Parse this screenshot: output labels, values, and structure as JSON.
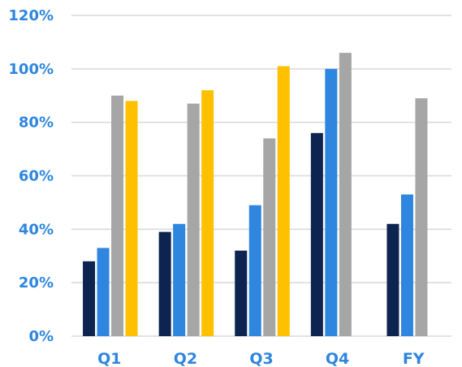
{
  "chart_data": {
    "type": "bar",
    "categories": [
      "Q1",
      "Q2",
      "Q3",
      "Q4",
      "FY"
    ],
    "series": [
      {
        "values": [
          28,
          39,
          32,
          76,
          42
        ],
        "color": "#0d2350"
      },
      {
        "values": [
          33,
          42,
          49,
          100,
          53
        ],
        "color": "#2e86de"
      },
      {
        "values": [
          90,
          87,
          74,
          106,
          89
        ],
        "color": "#a6a6a6"
      },
      {
        "values": [
          88,
          92,
          101,
          null,
          null
        ],
        "color": "#ffc000"
      }
    ],
    "yticks": [
      "0%",
      "20%",
      "40%",
      "60%",
      "80%",
      "100%",
      "120%"
    ],
    "ylim": [
      0,
      120
    ],
    "grid": true,
    "label_color": "#2e86de",
    "grid_color": "#d9d9d9"
  }
}
